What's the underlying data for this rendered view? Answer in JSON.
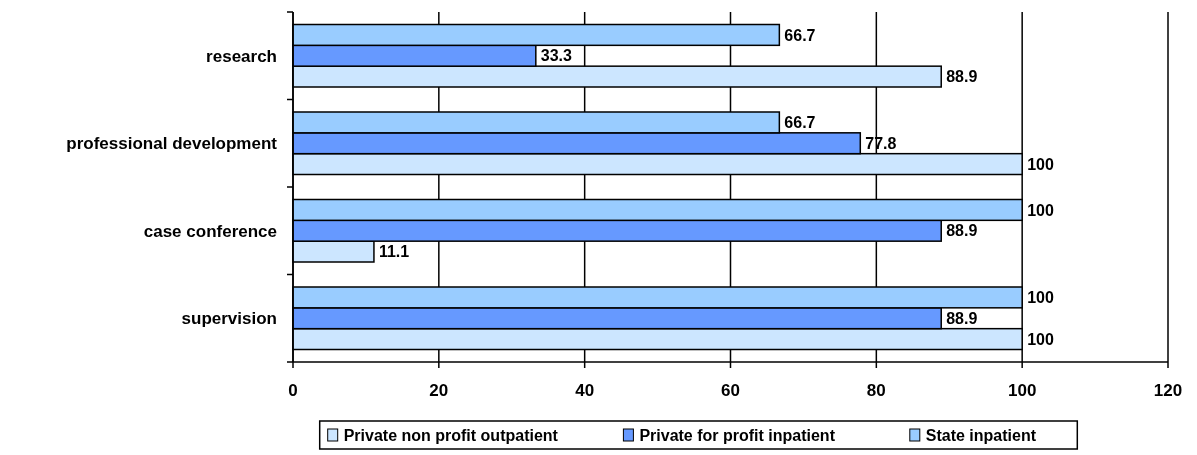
{
  "chart_data": {
    "type": "bar",
    "orientation": "horizontal",
    "categories": [
      "research",
      "professional development",
      "case conference",
      "supervision"
    ],
    "series": [
      {
        "name": "Private non profit outpatient",
        "color": "#cce6ff",
        "values": [
          88.9,
          100,
          11.1,
          100
        ]
      },
      {
        "name": "Private for profit inpatient",
        "color": "#6699ff",
        "values": [
          33.3,
          77.8,
          88.9,
          88.9
        ]
      },
      {
        "name": "State inpatient",
        "color": "#99ccff",
        "values": [
          66.7,
          66.7,
          100,
          100
        ]
      }
    ],
    "xlim": [
      0,
      120
    ],
    "xticks": [
      0,
      20,
      40,
      60,
      80,
      100,
      120
    ],
    "grid": "x",
    "legend": "bottom",
    "data_labels": true
  }
}
